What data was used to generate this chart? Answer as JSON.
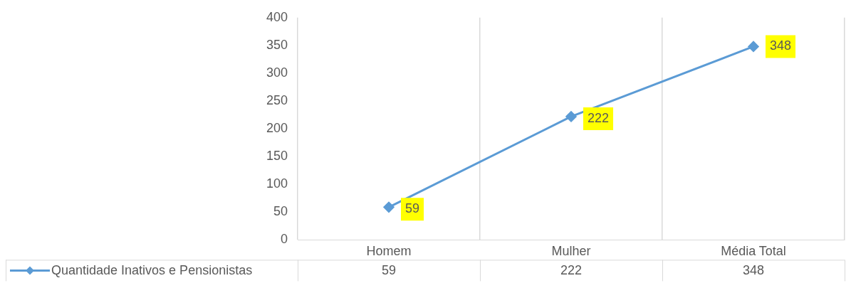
{
  "chart_data": {
    "type": "line",
    "categories": [
      "Homem",
      "Mulher",
      "Média Total"
    ],
    "series": [
      {
        "name": "Quantidade Inativos e Pensionistas",
        "color": "#5b9bd5",
        "values": [
          59,
          222,
          348
        ],
        "value_labels": [
          "59",
          "222",
          "348"
        ]
      }
    ],
    "ylim": [
      0,
      400
    ],
    "yticks": [
      0,
      50,
      100,
      150,
      200,
      250,
      300,
      350,
      400
    ],
    "grid": "x",
    "legend": "bottom left",
    "marker": "diamond",
    "line_style": "solid",
    "data_labels": true,
    "annotations": [
      "59",
      "222",
      "348"
    ]
  }
}
